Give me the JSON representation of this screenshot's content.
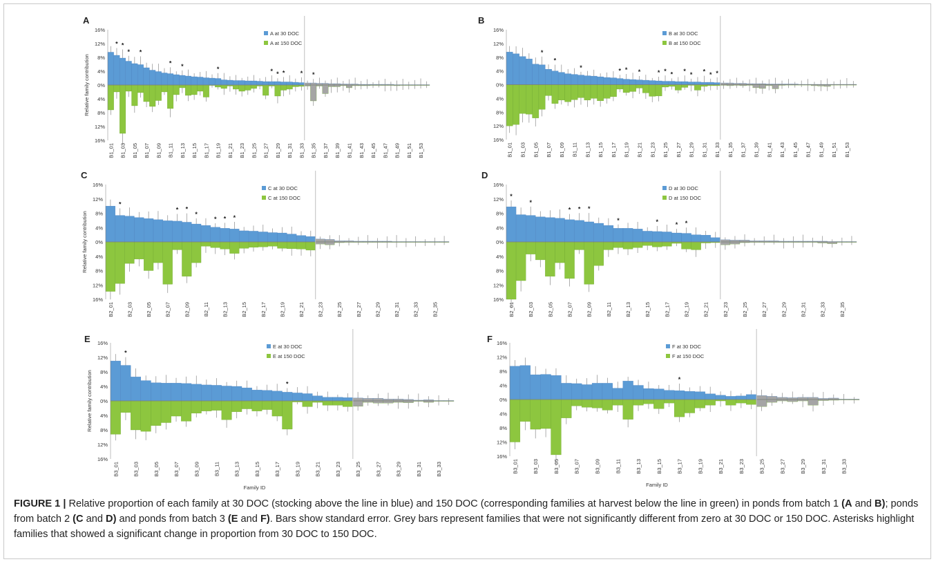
{
  "colors": {
    "blue": "#5b9bd5",
    "green": "#8dc63f",
    "grey": "#a5a5a5",
    "divider": "#bfbfbf",
    "axis": "#7f7f7f",
    "text": "#222222"
  },
  "chart_data": [
    {
      "panel": "A",
      "type": "bar",
      "ylabel": "Relative family contribution",
      "xlabel": "",
      "ylim": [
        -16,
        16
      ],
      "yticks": [
        "16%",
        "12%",
        "8%",
        "4%",
        "0%",
        "4%",
        "8%",
        "12%",
        "16%"
      ],
      "legend": [
        "A at 30 DOC",
        "A at 150 DOC"
      ],
      "legend_position": "top",
      "n": 54,
      "sig_threshold": 33,
      "tick_labels": [
        "B1_01",
        "B1_03",
        "B1_05",
        "B1_07",
        "B1_09",
        "B1_11",
        "B1_13",
        "B1_15",
        "B1_17",
        "B1_19",
        "B1_21",
        "B1_23",
        "B1_25",
        "B1_27",
        "B1_29",
        "B1_31",
        "B1_33",
        "B1_35",
        "B1_37",
        "B1_39",
        "B1_41",
        "B1_43",
        "B1_45",
        "B1_47",
        "B1_49",
        "B1_51",
        "B1_53"
      ],
      "series": [
        {
          "name": "A at 30 DOC",
          "values": [
            9.5,
            8.6,
            7.8,
            6.9,
            6.2,
            5.9,
            5.0,
            4.3,
            3.9,
            3.5,
            3.3,
            3.0,
            2.8,
            2.6,
            2.4,
            2.3,
            2.1,
            2.0,
            1.9,
            1.5,
            1.4,
            1.3,
            1.3,
            1.2,
            1.2,
            1.1,
            1.0,
            1.0,
            1.0,
            0.9,
            0.9,
            0.8,
            0.7,
            0.6,
            0.6,
            0.5,
            0.5,
            0.4,
            0.4,
            0.3,
            0.3,
            0.3,
            0.2,
            0.2,
            0.2,
            0.2,
            0.2,
            0.2,
            0.1,
            0.1,
            0.1,
            0.1,
            0.1,
            0.1
          ]
        },
        {
          "name": "A at 150 DOC",
          "values": [
            7.2,
            2.0,
            14.0,
            1.8,
            6.0,
            2.2,
            4.8,
            6.2,
            4.5,
            2.0,
            6.8,
            2.8,
            0.8,
            3.0,
            2.8,
            1.8,
            3.5,
            0,
            0.6,
            1.0,
            0.3,
            1.2,
            1.8,
            1.5,
            1.0,
            0.3,
            3.0,
            0.3,
            3.2,
            1.5,
            1.2,
            0.5,
            0.4,
            0.3,
            4.6,
            0.3,
            2.5,
            0.5,
            0.5,
            0.2,
            0.8,
            0.2,
            0.2,
            0.2,
            0.1,
            0.1,
            0.1,
            0.1,
            0.2,
            0.1,
            0.1,
            0.1,
            0.1,
            0.1
          ]
        }
      ],
      "significant_change": [
        2,
        3,
        4,
        6,
        11,
        13,
        19,
        28,
        29,
        30,
        33,
        35
      ]
    },
    {
      "panel": "B",
      "type": "bar",
      "ylabel": "",
      "xlabel": "",
      "ylim": [
        -16,
        16
      ],
      "yticks": [
        "16%",
        "12%",
        "8%",
        "4%",
        "0%",
        "4%",
        "8%",
        "12%",
        "16%"
      ],
      "legend": [
        "B at 30 DOC",
        "B at 150 DOC"
      ],
      "legend_position": "top",
      "n": 54,
      "sig_threshold": 33,
      "tick_labels": [
        "B1_01",
        "B1_03",
        "B1_05",
        "B1_07",
        "B1_09",
        "B1_11",
        "B1_13",
        "B1_15",
        "B1_17",
        "B1_19",
        "B1_21",
        "B1_23",
        "B1_25",
        "B1_27",
        "B1_29",
        "B1_31",
        "B1_33",
        "B1_35",
        "B1_37",
        "B1_39",
        "B1_41",
        "B1_43",
        "B1_45",
        "B1_47",
        "B1_49",
        "B1_51",
        "B1_53"
      ],
      "series": [
        {
          "name": "B at 30 DOC",
          "values": [
            9.5,
            9.0,
            8.2,
            7.5,
            6.0,
            5.8,
            4.5,
            4.0,
            3.6,
            3.2,
            3.0,
            2.8,
            2.6,
            2.5,
            2.3,
            2.1,
            2.0,
            1.8,
            1.6,
            1.5,
            1.4,
            1.3,
            1.2,
            1.1,
            1.0,
            1.0,
            0.9,
            0.9,
            0.8,
            0.8,
            0.7,
            0.7,
            0.6,
            0.5,
            0.5,
            0.4,
            0.4,
            0.3,
            0.3,
            0.3,
            0.2,
            0.2,
            0.2,
            0.2,
            0.2,
            0.1,
            0.1,
            0.1,
            0.1,
            0.1,
            0.1,
            0.1,
            0.1,
            0.1
          ]
        },
        {
          "name": "B at 150 DOC",
          "values": [
            12.0,
            11.6,
            8.4,
            8.6,
            9.7,
            7.2,
            3.2,
            5.5,
            4.5,
            5.0,
            4.4,
            3.8,
            4.5,
            4.0,
            4.7,
            4.0,
            3.5,
            1.3,
            2.3,
            2.0,
            1.0,
            2.4,
            3.4,
            3.3,
            0.7,
            0.5,
            1.6,
            0.8,
            0.2,
            1.6,
            0.5,
            0.3,
            0.3,
            0.2,
            0.3,
            0.2,
            0.3,
            0.2,
            0.9,
            1.1,
            0.3,
            1.2,
            0.2,
            0.1,
            0.1,
            0.1,
            0.1,
            0.3,
            0.4,
            0.5,
            0.1,
            0.1,
            0.1,
            0.1
          ]
        }
      ],
      "significant_change": [
        6,
        8,
        12,
        18,
        19,
        21,
        24,
        25,
        26,
        28,
        29,
        31,
        32,
        33
      ]
    },
    {
      "panel": "C",
      "type": "bar",
      "ylabel": "Relative family contribution",
      "xlabel": "",
      "ylim": [
        -16,
        16
      ],
      "yticks": [
        "16%",
        "12%",
        "8%",
        "4%",
        "0%",
        "4%",
        "8%",
        "12%",
        "16%"
      ],
      "legend": [
        "C at 30 DOC",
        "C at 150 DOC"
      ],
      "legend_position": "top",
      "n": 36,
      "sig_threshold": 22,
      "tick_labels": [
        "B2_01",
        "B2_03",
        "B2_05",
        "B2_07",
        "B2_09",
        "B2_11",
        "B2_13",
        "B2_15",
        "B2_17",
        "B2_19",
        "B2_21",
        "B2_23",
        "B2_25",
        "B2_27",
        "B2_29",
        "B2_31",
        "B2_33",
        "B2_35"
      ],
      "series": [
        {
          "name": "C at 30 DOC",
          "values": [
            10.0,
            7.4,
            7.2,
            6.8,
            6.5,
            6.2,
            5.9,
            5.8,
            5.5,
            5.0,
            4.6,
            4.1,
            3.8,
            3.6,
            3.1,
            3.0,
            2.8,
            2.6,
            2.5,
            2.2,
            1.8,
            1.5,
            0.8,
            0.7,
            0.3,
            0.3,
            0.2,
            0.2,
            0.2,
            0.2,
            0.1,
            0.1,
            0.1,
            0.1,
            0.1,
            0.1
          ]
        },
        {
          "name": "C at 150 DOC",
          "values": [
            13.8,
            11.6,
            6.0,
            4.8,
            8.0,
            5.8,
            11.8,
            2.2,
            9.6,
            5.8,
            1.2,
            1.6,
            2.0,
            3.2,
            1.8,
            1.5,
            1.4,
            1.2,
            1.8,
            1.9,
            2.0,
            2.3,
            0.6,
            0.8,
            0.2,
            0.1,
            0.1,
            0.1,
            0.1,
            0.1,
            0.1,
            0.1,
            0.1,
            0.1,
            0.1,
            0.1
          ]
        }
      ],
      "significant_change": [
        2,
        8,
        9,
        10,
        12,
        13,
        14
      ]
    },
    {
      "panel": "D",
      "type": "bar",
      "ylabel": "",
      "xlabel": "",
      "ylim": [
        -16,
        16
      ],
      "yticks": [
        "16%",
        "12%",
        "8%",
        "4%",
        "0%",
        "4%",
        "8%",
        "12%",
        "16%"
      ],
      "legend": [
        "D at 30 DOC",
        "D at 150 DOC"
      ],
      "legend_position": "top",
      "n": 36,
      "sig_threshold": 22,
      "tick_labels": [
        "B2_01",
        "B2_03",
        "B2_05",
        "B2_07",
        "B2_09",
        "B2_11",
        "B2_13",
        "B2_15",
        "B2_17",
        "B2_19",
        "B2_21",
        "B2_23",
        "B2_25",
        "B2_27",
        "B2_29",
        "B2_31",
        "B2_33",
        "B2_35"
      ],
      "series": [
        {
          "name": "D at 30 DOC",
          "values": [
            9.8,
            7.6,
            7.4,
            7.0,
            6.8,
            6.6,
            6.2,
            6.0,
            5.6,
            5.2,
            4.6,
            3.8,
            3.8,
            3.6,
            3.0,
            2.9,
            2.8,
            2.5,
            2.4,
            2.0,
            1.9,
            1.2,
            0.6,
            0.5,
            0.5,
            0.3,
            0.3,
            0.3,
            0.2,
            0.2,
            0.2,
            0.2,
            0.2,
            0.1,
            0.1,
            0.1
          ]
        },
        {
          "name": "D at 150 DOC",
          "values": [
            16.0,
            10.8,
            3.4,
            5.0,
            9.6,
            5.8,
            10.2,
            2.2,
            11.8,
            6.6,
            2.2,
            1.6,
            2.0,
            1.6,
            1.0,
            1.4,
            1.2,
            0.4,
            2.0,
            2.2,
            0.3,
            0.2,
            0.8,
            0.6,
            0.2,
            0.1,
            0.1,
            0.1,
            0.1,
            0.1,
            0.1,
            0.1,
            0.3,
            0.5,
            0.1,
            0.1
          ]
        }
      ],
      "significant_change": [
        1,
        3,
        7,
        8,
        9,
        12,
        16,
        18,
        19
      ]
    },
    {
      "panel": "E",
      "type": "bar",
      "ylabel": "Relative family contribution",
      "xlabel": "Family ID",
      "ylim": [
        -16,
        16
      ],
      "yticks": [
        "16%",
        "12%",
        "8%",
        "4%",
        "0%",
        "4%",
        "8%",
        "12%",
        "16%"
      ],
      "legend": [
        "E at 30 DOC",
        "E at 150 DOC"
      ],
      "legend_position": "top",
      "n": 34,
      "sig_threshold": 24,
      "tick_labels": [
        "B3_01",
        "B3_03",
        "B3_05",
        "B3_07",
        "B3_09",
        "B3_11",
        "B3_13",
        "B3_15",
        "B3_17",
        "B3_19",
        "B3_21",
        "B3_23",
        "B3_25",
        "B3_27",
        "B3_29",
        "B3_31",
        "B3_33"
      ],
      "series": [
        {
          "name": "E at 30 DOC",
          "values": [
            11.0,
            9.8,
            6.6,
            5.6,
            5.0,
            4.9,
            4.9,
            4.8,
            4.6,
            4.4,
            4.3,
            4.1,
            4.0,
            3.6,
            3.0,
            2.9,
            2.7,
            2.4,
            2.2,
            2.0,
            1.4,
            1.0,
            1.0,
            0.9,
            0.8,
            0.7,
            0.7,
            0.5,
            0.5,
            0.4,
            0.2,
            0.3,
            0.1,
            0.1
          ]
        },
        {
          "name": "E at 150 DOC",
          "values": [
            9.2,
            3.2,
            8.0,
            8.4,
            6.8,
            6.0,
            4.2,
            5.6,
            3.4,
            2.8,
            2.6,
            5.2,
            3.0,
            2.2,
            2.8,
            2.4,
            4.2,
            7.8,
            0.3,
            1.6,
            0.4,
            1.2,
            1.2,
            1.6,
            1.5,
            0.4,
            0.6,
            0.6,
            0.4,
            0.5,
            0.1,
            0.4,
            0.1,
            0.1
          ]
        }
      ],
      "significant_change": [
        2,
        18
      ]
    },
    {
      "panel": "F",
      "type": "bar",
      "ylabel": "",
      "xlabel": "Family ID",
      "ylim": [
        -16,
        16
      ],
      "yticks": [
        "16%",
        "12%",
        "8%",
        "4%",
        "0%",
        "4%",
        "8%",
        "12%",
        "16%"
      ],
      "legend": [
        "F at 30 DOC",
        "F at 150 DOC"
      ],
      "legend_position": "top",
      "n": 34,
      "sig_threshold": 24,
      "tick_labels": [
        "B3_01",
        "B3_03",
        "B3_05",
        "B3_07",
        "B3_09",
        "B3_11",
        "B3_13",
        "B3_15",
        "B3_17",
        "B3_19",
        "B3_21",
        "B3_23",
        "B3_25",
        "B3_27",
        "B3_29",
        "B3_31",
        "B3_33"
      ],
      "series": [
        {
          "name": "F at 30 DOC",
          "values": [
            9.4,
            9.6,
            7.0,
            7.1,
            6.8,
            4.6,
            4.5,
            4.2,
            4.6,
            4.6,
            3.2,
            5.2,
            4.0,
            3.1,
            3.0,
            2.6,
            2.5,
            2.3,
            2.2,
            1.6,
            1.2,
            0.9,
            1.0,
            1.4,
            1.1,
            0.9,
            0.6,
            0.5,
            0.6,
            0.6,
            0.3,
            0.4,
            0.1,
            0.1
          ]
        },
        {
          "name": "F at 150 DOC",
          "values": [
            12.0,
            6.2,
            8.4,
            8.2,
            15.6,
            5.2,
            1.8,
            2.2,
            2.4,
            3.0,
            1.6,
            5.6,
            1.6,
            1.2,
            2.6,
            1.0,
            4.9,
            3.8,
            2.4,
            1.6,
            0.4,
            1.6,
            1.0,
            1.4,
            2.0,
            0.8,
            0.4,
            0.6,
            0.4,
            1.6,
            0.3,
            0.2,
            0.1,
            0.1
          ]
        }
      ],
      "significant_change": [
        17
      ]
    }
  ],
  "caption": {
    "label": "FIGURE 1 |",
    "segments": [
      {
        "text": " Relative proportion of each family at 30 DOC (stocking above the line in blue) and 150 DOC (corresponding families at harvest below the line in green) in ponds from batch 1 ",
        "bold": false
      },
      {
        "text": "(A",
        "bold": true
      },
      {
        "text": " and ",
        "bold": false
      },
      {
        "text": "B)",
        "bold": true
      },
      {
        "text": "; ponds from batch 2 ",
        "bold": false
      },
      {
        "text": "(C",
        "bold": true
      },
      {
        "text": " and ",
        "bold": false
      },
      {
        "text": "D)",
        "bold": true
      },
      {
        "text": " and ponds from batch 3 ",
        "bold": false
      },
      {
        "text": "(E",
        "bold": true
      },
      {
        "text": " and ",
        "bold": false
      },
      {
        "text": "F)",
        "bold": true
      },
      {
        "text": ". Bars show standard error. Grey bars represent families that were not significantly different from zero at 30 DOC or 150 DOC. Asterisks highlight families that showed a significant change in proportion from 30 DOC to 150 DOC.",
        "bold": false
      }
    ]
  }
}
